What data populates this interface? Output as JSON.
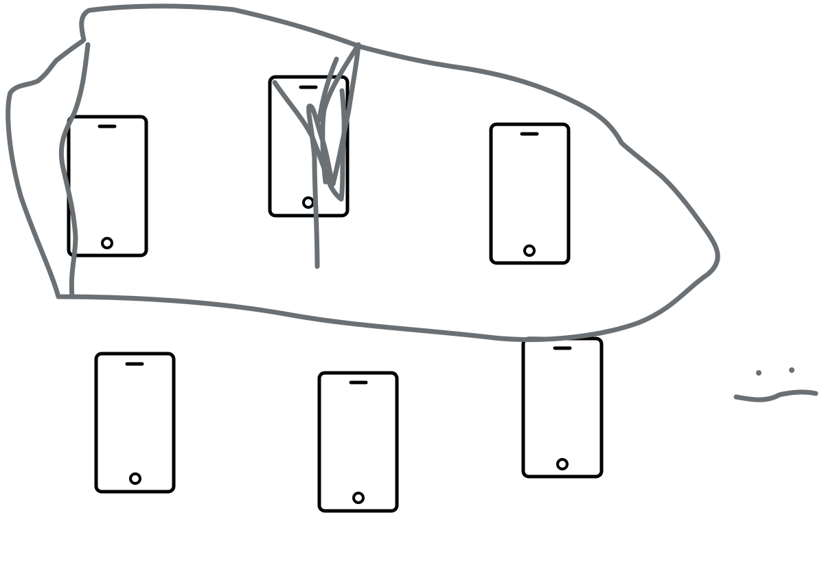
{
  "colors": {
    "background": "#ffffff",
    "phone_outline": "#000000",
    "ink_stroke": "#6b7074"
  },
  "icons": {
    "phone": "smartphone-icon"
  },
  "phones": [
    {
      "id": "phone-1",
      "group": "top-row"
    },
    {
      "id": "phone-2",
      "group": "top-row",
      "scribbled": true
    },
    {
      "id": "phone-3",
      "group": "top-row"
    },
    {
      "id": "phone-4",
      "group": "bottom-row"
    },
    {
      "id": "phone-5",
      "group": "bottom-row"
    },
    {
      "id": "phone-6",
      "group": "bottom-row"
    }
  ],
  "annotations": {
    "enclosure": "freehand-loop-around-top-row",
    "scribble": "strike-through-on-phone-2",
    "doodle": "face-doodle-right-edge"
  }
}
